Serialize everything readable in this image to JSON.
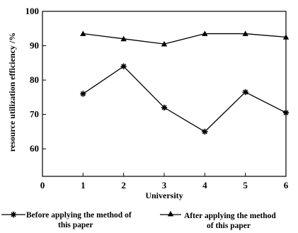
{
  "chart_data": {
    "type": "line",
    "xlabel": "University",
    "ylabel": "resource utilization efficiency /%",
    "x_ticks": [
      "0",
      "1",
      "2",
      "3",
      "4",
      "5",
      "6"
    ],
    "y_ticks": [
      "60",
      "70",
      "80",
      "90",
      "100"
    ],
    "xlim": [
      0,
      6
    ],
    "ylim": [
      52,
      100
    ],
    "grid": false,
    "legend_position": "bottom",
    "x": [
      1,
      2,
      3,
      4,
      5,
      6
    ],
    "series": [
      {
        "name": "Before applying the method of this paper",
        "name_lines": [
          "Before applying the method of",
          "this paper"
        ],
        "marker": "star",
        "values": [
          76,
          84,
          72,
          65,
          76.5,
          70.5
        ]
      },
      {
        "name": "After applying the method of this paper",
        "name_lines": [
          "After applying the method",
          "of this paper"
        ],
        "marker": "triangle",
        "values": [
          93.5,
          92,
          90.5,
          93.5,
          93.5,
          92.5
        ]
      }
    ]
  }
}
